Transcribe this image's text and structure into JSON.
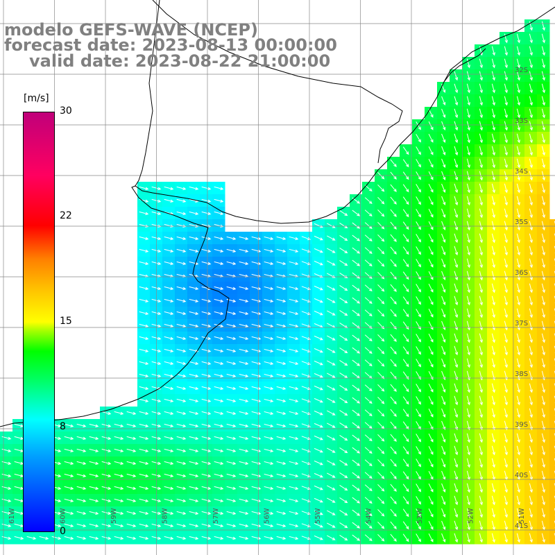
{
  "title": {
    "line1": "modelo GEFS-WAVE (NCEP)",
    "line2": "forecast date: 2023-08-13 00:00:00",
    "line3": "valid date: 2023-08-22 21:00:00"
  },
  "colorbar": {
    "unit": "[m/s]",
    "ticks": [
      "30",
      "22",
      "15",
      "8",
      "0"
    ]
  },
  "lat_labels": [
    "32S",
    "33S",
    "34S",
    "35S",
    "36S",
    "37S",
    "38S",
    "39S",
    "40S",
    "41S"
  ],
  "lon_labels": [
    "61W",
    "60W",
    "59W",
    "58W",
    "57W",
    "56W",
    "55W",
    "54W",
    "53W",
    "52W",
    "51W"
  ],
  "colors": {
    "land": "#ffffff",
    "grid": "#888888",
    "coast": "#000000",
    "arrow": "#ffffff",
    "title": "#808080"
  }
}
